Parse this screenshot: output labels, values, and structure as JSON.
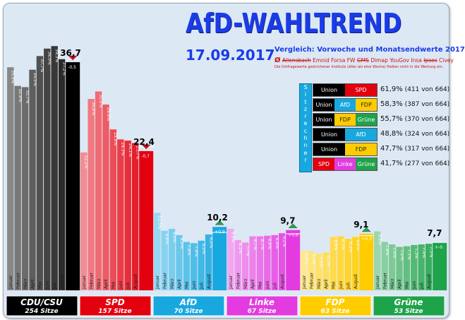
{
  "header": {
    "title": "AfD-WAHLTREND",
    "date": "17.09.2017",
    "subtitle": "Vergleich: Vorwoche und Monatsendwerte 2017",
    "avg_symbol": "Ø",
    "institutes_struck": "Allensbach",
    "institutes_1": "Emnid Forsa FW",
    "institutes_struck_2": "GMS",
    "institutes_2": "Dimap YouGov Insa",
    "institutes_struck_3": "Ipsos",
    "institutes_3": "Civey",
    "footnote": "Die Umfragewerte gestrichener Institute (älter als eine Woche) fließen nicht in die Wertung ein."
  },
  "colors": {
    "background": "#dce8f4",
    "title": "#1a3ce8",
    "cdu": "#000000",
    "spd": "#e3000f",
    "afd": "#18a8e0",
    "linke": "#e33be0",
    "fdp": "#ffcc00",
    "gruene": "#1ea34a",
    "coalition_label": "#18a8e0"
  },
  "chart_data": {
    "type": "bar",
    "categories": [
      "Januar",
      "Februar",
      "März",
      "April",
      "Mai",
      "Juni",
      "Juli",
      "August"
    ],
    "ylim": [
      0,
      45
    ],
    "grid": false,
    "series": [
      {
        "name": "CDU/CSU",
        "seats": "254 Sitze",
        "values": [
          35.9,
          32.9,
          32.7,
          35.5,
          37.7,
          38.9,
          39.3,
          37.2
        ],
        "prev_week": 37.2,
        "current": "36,7",
        "change": "-0,5",
        "color": "#000000"
      },
      {
        "name": "SPD",
        "seats": "157 Sitze",
        "values": [
          22.2,
          30.8,
          32.0,
          29.9,
          25.9,
          24.3,
          24.1,
          23.7
        ],
        "prev_week": 23.1,
        "current": "22,4",
        "change": "-0,7",
        "color": "#e3000f"
      },
      {
        "name": "AfD",
        "seats": "70 Sitze",
        "values": [
          12.5,
          9.6,
          9.9,
          8.9,
          7.8,
          7.6,
          8.0,
          9.0
        ],
        "prev_week": 9.3,
        "current": "10,2",
        "change": "+0,9",
        "color": "#18a8e0"
      },
      {
        "name": "Linke",
        "seats": "67 Sitze",
        "values": [
          9.9,
          8.1,
          7.7,
          8.7,
          8.7,
          8.8,
          8.9,
          9.2
        ],
        "prev_week": 9.1,
        "current": "9,7",
        "change": "+0,6",
        "color": "#e33be0"
      },
      {
        "name": "FDP",
        "seats": "63 Sitze",
        "values": [
          6.4,
          6.3,
          5.9,
          6.1,
          8.6,
          8.7,
          8.3,
          8.6
        ],
        "prev_week": 8.8,
        "current": "9,1",
        "change": "+0,3",
        "color": "#ffcc00"
      },
      {
        "name": "Grüne",
        "seats": "53 Sitze",
        "values": [
          9.5,
          7.8,
          7.4,
          7.0,
          7.1,
          7.3,
          7.4,
          7.5
        ],
        "prev_week": 7.7,
        "current": "7,7",
        "change": "+-0",
        "color": "#1ea34a"
      }
    ]
  },
  "coalitions": {
    "label": "Sitzrechner",
    "rows": [
      {
        "parties": [
          "Union",
          "SPD"
        ],
        "percent": "61,9%",
        "seats": "(411 von 664)"
      },
      {
        "parties": [
          "Union",
          "AfD",
          "FDP"
        ],
        "percent": "58,3%",
        "seats": "(387 von 664)"
      },
      {
        "parties": [
          "Union",
          "FDP",
          "Grüne"
        ],
        "percent": "55,7%",
        "seats": "(370 von 664)"
      },
      {
        "parties": [
          "Union",
          "AfD"
        ],
        "percent": "48,8%",
        "seats": "(324 von 664)"
      },
      {
        "parties": [
          "Union",
          "FDP"
        ],
        "percent": "47,7%",
        "seats": "(317 von 664)"
      },
      {
        "parties": [
          "SPD",
          "Linke",
          "Grüne"
        ],
        "percent": "41,7%",
        "seats": "(277 von 664)"
      }
    ]
  }
}
